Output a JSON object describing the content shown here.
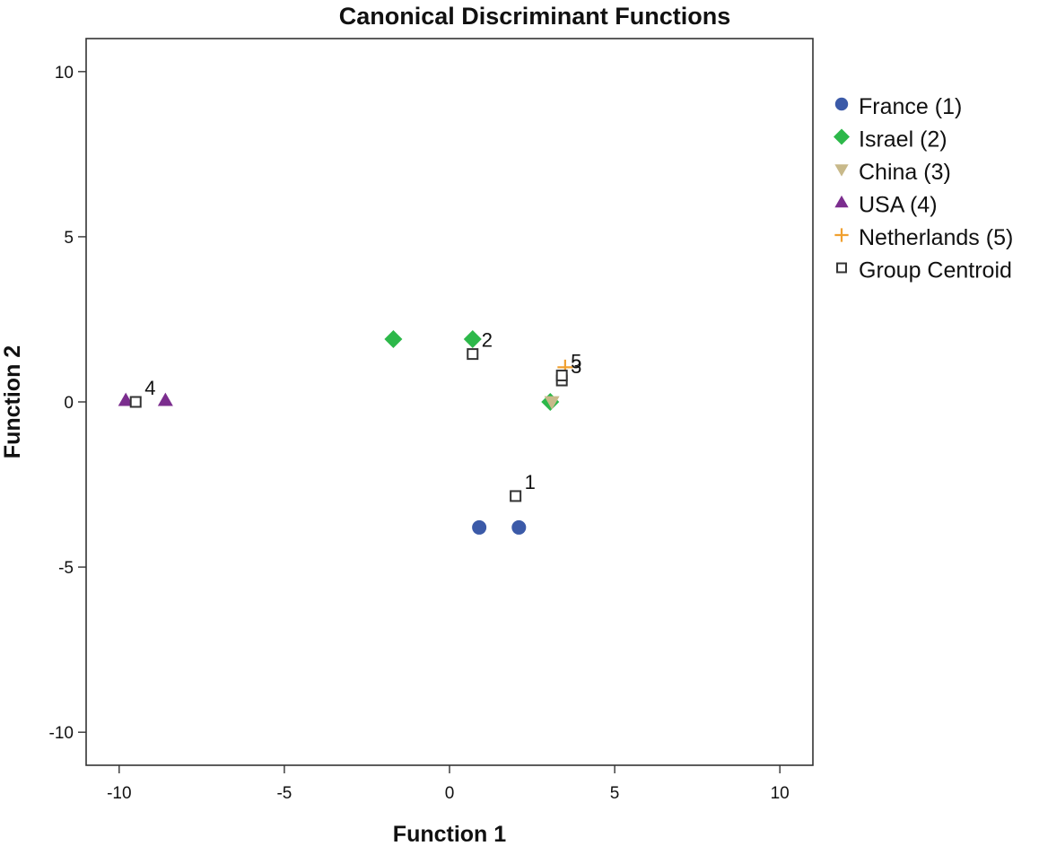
{
  "chart_data": {
    "type": "scatter",
    "title": "Canonical Discriminant Functions",
    "xlabel": "Function 1",
    "ylabel": "Function 2",
    "xlim": [
      -11,
      11
    ],
    "ylim": [
      -11,
      11
    ],
    "xticks": [
      -10,
      -5,
      0,
      5,
      10
    ],
    "yticks": [
      -10,
      -5,
      0,
      5,
      10
    ],
    "grid": false,
    "legend_position": "right",
    "series": [
      {
        "name": "France (1)",
        "marker": "circle",
        "color": "#3b5aa8",
        "points": [
          [
            0.9,
            -3.8
          ],
          [
            2.1,
            -3.8
          ]
        ]
      },
      {
        "name": "Israel (2)",
        "marker": "diamond",
        "color": "#2db84a",
        "points": [
          [
            -1.7,
            1.9
          ],
          [
            0.7,
            1.9
          ],
          [
            3.05,
            0.0
          ]
        ]
      },
      {
        "name": "China (3)",
        "marker": "triangle-down",
        "color": "#c8b98a",
        "points": [
          [
            3.1,
            0.0
          ]
        ]
      },
      {
        "name": "USA (4)",
        "marker": "triangle-up",
        "color": "#7b2d8e",
        "points": [
          [
            -9.8,
            0.05
          ],
          [
            -8.6,
            0.05
          ]
        ]
      },
      {
        "name": "Netherlands (5)",
        "marker": "plus",
        "color": "#f0a030",
        "points": [
          [
            3.5,
            1.05
          ]
        ]
      }
    ],
    "centroids": {
      "name": "Group Centroid",
      "marker": "square-open",
      "color": "#333333",
      "points": [
        {
          "label": "1",
          "x": 2.0,
          "y": -2.85
        },
        {
          "label": "2",
          "x": 0.7,
          "y": 1.45
        },
        {
          "label": "3",
          "x": 3.4,
          "y": 0.65
        },
        {
          "label": "4",
          "x": -9.5,
          "y": 0.0
        },
        {
          "label": "5",
          "x": 3.4,
          "y": 0.8
        }
      ]
    }
  }
}
